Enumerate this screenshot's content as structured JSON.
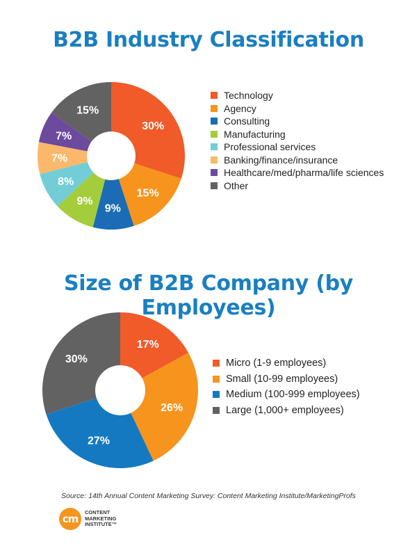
{
  "chart_data": [
    {
      "type": "pie",
      "title": "B2B Industry Classification",
      "categories": [
        "Technology",
        "Agency",
        "Consulting",
        "Manufacturing",
        "Professional services",
        "Banking/finance/insurance",
        "Healthcare/med/pharma/life sciences",
        "Other"
      ],
      "values": [
        30,
        15,
        9,
        9,
        8,
        7,
        7,
        15
      ],
      "labels": [
        "30%",
        "15%",
        "9%",
        "9%",
        "8%",
        "7%",
        "7%",
        "15%"
      ],
      "colors": [
        "#f15a29",
        "#f7941d",
        "#1c6cb5",
        "#a3cd3b",
        "#73cdd6",
        "#fbb86a",
        "#6c4a9e",
        "#626262"
      ],
      "legend_position": "right",
      "donut": true
    },
    {
      "type": "pie",
      "title": "Size of B2B Company (by Employees)",
      "categories": [
        "Micro (1-9 employees)",
        "Small (10-99 employees)",
        "Medium (100-999 employees)",
        "Large (1,000+ employees)"
      ],
      "values": [
        17,
        26,
        27,
        30
      ],
      "labels": [
        "17%",
        "26%",
        "27%",
        "30%"
      ],
      "colors": [
        "#f15a29",
        "#f7941d",
        "#1479c1",
        "#626262"
      ],
      "legend_position": "right",
      "donut": true
    }
  ],
  "source": "Source: 14th Annual Content Marketing Survey: Content Marketing Institute/MarketingProfs",
  "logo": {
    "mark": "cm",
    "lines": [
      "CONTENT",
      "MARKETING",
      "INSTITUTE™"
    ]
  }
}
